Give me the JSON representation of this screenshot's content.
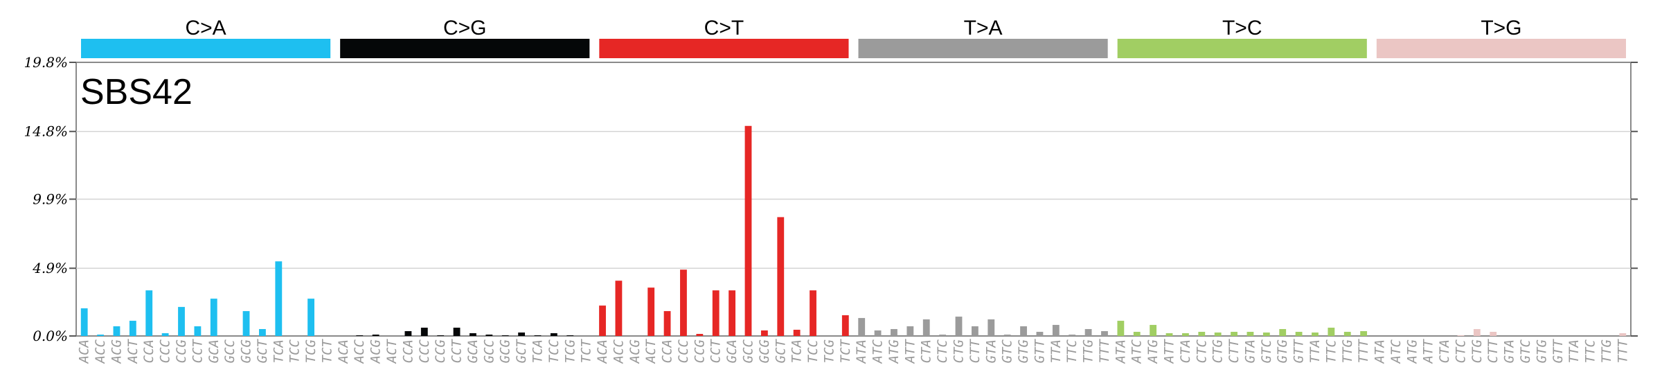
{
  "chart_data": {
    "type": "bar",
    "title": "SBS42",
    "ylim": [
      0,
      19.8
    ],
    "yticks": [
      0.0,
      4.9,
      9.9,
      14.8,
      19.8
    ],
    "ytick_labels": [
      "0.0%",
      "4.9%",
      "9.9%",
      "14.8%",
      "19.8%"
    ],
    "grid": true,
    "groups": [
      {
        "name": "C>A",
        "color": "#1ebff0"
      },
      {
        "name": "C>G",
        "color": "#050708"
      },
      {
        "name": "C>T",
        "color": "#e62725"
      },
      {
        "name": "T>A",
        "color": "#9b9b9b"
      },
      {
        "name": "T>C",
        "color": "#a1ce63"
      },
      {
        "name": "T>G",
        "color": "#ebc6c4"
      }
    ],
    "categories": [
      "ACA",
      "ACC",
      "ACG",
      "ACT",
      "CCA",
      "CCC",
      "CCG",
      "CCT",
      "GCA",
      "GCC",
      "GCG",
      "GCT",
      "TCA",
      "TCC",
      "TCG",
      "TCT",
      "ACA",
      "ACC",
      "ACG",
      "ACT",
      "CCA",
      "CCC",
      "CCG",
      "CCT",
      "GCA",
      "GCC",
      "GCG",
      "GCT",
      "TCA",
      "TCC",
      "TCG",
      "TCT",
      "ACA",
      "ACC",
      "ACG",
      "ACT",
      "CCA",
      "CCC",
      "CCG",
      "CCT",
      "GCA",
      "GCC",
      "GCG",
      "GCT",
      "TCA",
      "TCC",
      "TCG",
      "TCT",
      "ATA",
      "ATC",
      "ATG",
      "ATT",
      "CTA",
      "CTC",
      "CTG",
      "CTT",
      "GTA",
      "GTC",
      "GTG",
      "GTT",
      "TTA",
      "TTC",
      "TTG",
      "TTT",
      "ATA",
      "ATC",
      "ATG",
      "ATT",
      "CTA",
      "CTC",
      "CTG",
      "CTT",
      "GTA",
      "GTC",
      "GTG",
      "GTT",
      "TTA",
      "TTC",
      "TTG",
      "TTT",
      "ATA",
      "ATC",
      "ATG",
      "ATT",
      "CTA",
      "CTC",
      "CTG",
      "CTT",
      "GTA",
      "GTC",
      "GTG",
      "GTT",
      "TTA",
      "TTC",
      "TTG",
      "TTT"
    ],
    "values": [
      2.0,
      0.1,
      0.7,
      1.1,
      3.3,
      0.2,
      2.1,
      0.7,
      2.7,
      0.0,
      1.8,
      0.5,
      5.4,
      0.0,
      2.7,
      0.0,
      0.0,
      0.05,
      0.1,
      0.0,
      0.35,
      0.6,
      0.05,
      0.6,
      0.2,
      0.1,
      0.05,
      0.25,
      0.05,
      0.2,
      0.05,
      0.0,
      2.2,
      4.0,
      0.0,
      3.5,
      1.8,
      4.8,
      0.15,
      3.3,
      3.3,
      15.2,
      0.4,
      8.6,
      0.45,
      3.3,
      0.0,
      1.5,
      1.3,
      0.4,
      0.5,
      0.7,
      1.2,
      0.1,
      1.4,
      0.7,
      1.2,
      0.1,
      0.7,
      0.3,
      0.8,
      0.1,
      0.5,
      0.35,
      1.1,
      0.3,
      0.8,
      0.2,
      0.2,
      0.3,
      0.25,
      0.3,
      0.3,
      0.25,
      0.5,
      0.3,
      0.25,
      0.6,
      0.3,
      0.35,
      0.0,
      0.0,
      0.0,
      0.0,
      0.0,
      0.05,
      0.5,
      0.3,
      0.0,
      0.0,
      0.0,
      0.0,
      0.0,
      0.0,
      0.0,
      0.2
    ]
  }
}
